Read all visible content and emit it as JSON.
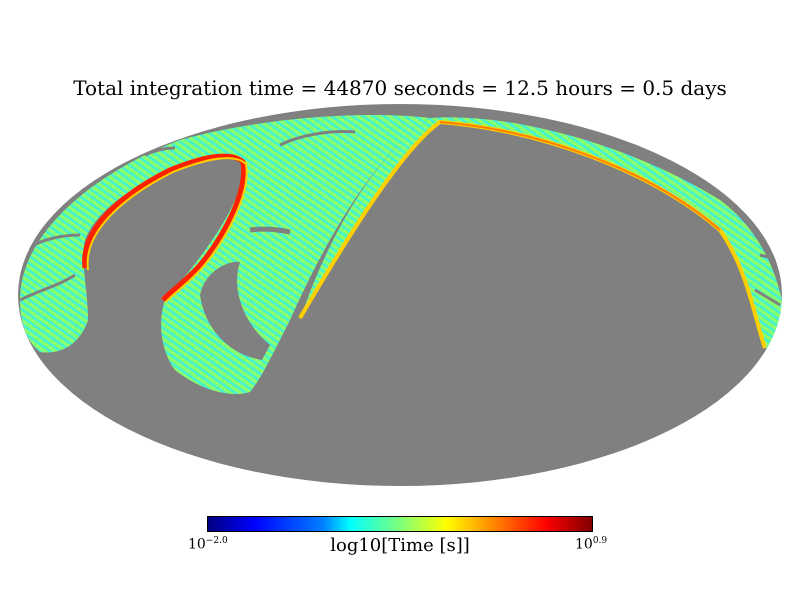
{
  "chart_data": {
    "type": "heatmap",
    "projection": "mollweide",
    "title": "Total integration time = 44870 seconds = 12.5 hours = 0.5 days",
    "colorbar": {
      "label": "log10[Time [s]]",
      "min_base": "10",
      "min_exp": "−2.0",
      "max_base": "10",
      "max_exp": "0.9",
      "min_value": -2.0,
      "max_value": 0.9,
      "colormap": "jet"
    },
    "colors": {
      "unobserved": "#808080",
      "background": "#ffffff"
    }
  }
}
